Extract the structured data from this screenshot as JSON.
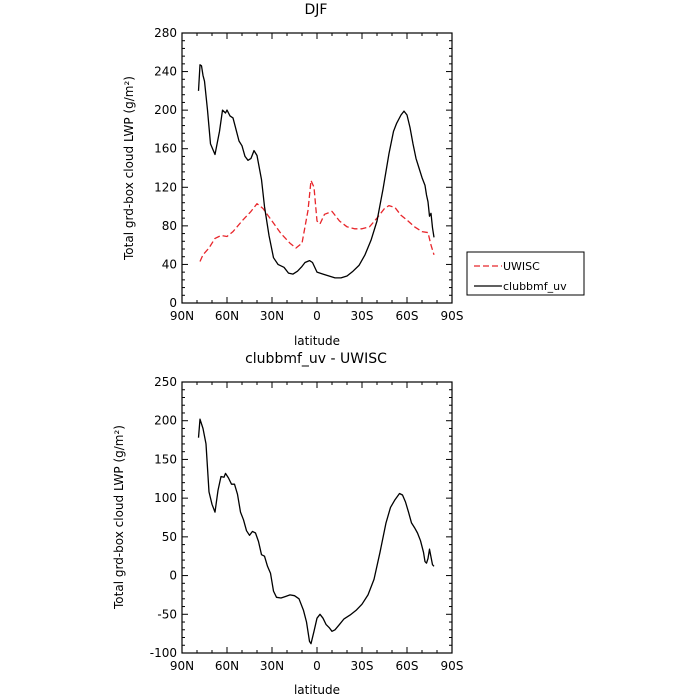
{
  "chart_data": [
    {
      "type": "line",
      "title": "DJF",
      "xlabel": "latitude",
      "ylabel": "Total grd-box cloud LWP (g/m²)",
      "ylim": [
        0,
        280
      ],
      "xlim": [
        90,
        -90
      ],
      "x_ticks": [
        {
          "value": 90,
          "label": "90N"
        },
        {
          "value": 60,
          "label": "60N"
        },
        {
          "value": 30,
          "label": "30N"
        },
        {
          "value": 0,
          "label": "0"
        },
        {
          "value": -30,
          "label": "30S"
        },
        {
          "value": -60,
          "label": "60S"
        },
        {
          "value": -90,
          "label": "90S"
        }
      ],
      "y_ticks": [
        0,
        40,
        80,
        120,
        160,
        200,
        240,
        280
      ],
      "legend_position": "right",
      "series": [
        {
          "name": "UWISC",
          "color": "#e8262b",
          "dash": "dashed",
          "points": [
            [
              78,
              43
            ],
            [
              76,
              50
            ],
            [
              72,
              57
            ],
            [
              68,
              67
            ],
            [
              64,
              70
            ],
            [
              60,
              69
            ],
            [
              56,
              74
            ],
            [
              50,
              85
            ],
            [
              44,
              95
            ],
            [
              40,
              103
            ],
            [
              36,
              98
            ],
            [
              30,
              85
            ],
            [
              24,
              72
            ],
            [
              18,
              62
            ],
            [
              14,
              57
            ],
            [
              10,
              62
            ],
            [
              6,
              96
            ],
            [
              4,
              127
            ],
            [
              2,
              120
            ],
            [
              0,
              85
            ],
            [
              -2,
              82
            ],
            [
              -5,
              92
            ],
            [
              -10,
              95
            ],
            [
              -15,
              85
            ],
            [
              -20,
              79
            ],
            [
              -25,
              77
            ],
            [
              -30,
              77
            ],
            [
              -35,
              79
            ],
            [
              -40,
              88
            ],
            [
              -45,
              98
            ],
            [
              -48,
              101
            ],
            [
              -52,
              99
            ],
            [
              -56,
              91
            ],
            [
              -60,
              86
            ],
            [
              -65,
              79
            ],
            [
              -70,
              74
            ],
            [
              -74,
              73
            ],
            [
              -76,
              60
            ],
            [
              -78,
              50
            ]
          ]
        },
        {
          "name": "clubbmf_uv",
          "color": "#000000",
          "dash": "solid",
          "points": [
            [
              79,
              220
            ],
            [
              78,
              247
            ],
            [
              77,
              246
            ],
            [
              76,
              236
            ],
            [
              75,
              230
            ],
            [
              73,
              200
            ],
            [
              71,
              165
            ],
            [
              68,
              154
            ],
            [
              65,
              178
            ],
            [
              63,
              200
            ],
            [
              61,
              197
            ],
            [
              60,
              200
            ],
            [
              58,
              194
            ],
            [
              56,
              192
            ],
            [
              54,
              180
            ],
            [
              52,
              168
            ],
            [
              50,
              163
            ],
            [
              48,
              152
            ],
            [
              46,
              148
            ],
            [
              44,
              150
            ],
            [
              42,
              158
            ],
            [
              40,
              153
            ],
            [
              37,
              128
            ],
            [
              35,
              100
            ],
            [
              32,
              70
            ],
            [
              29,
              47
            ],
            [
              26,
              40
            ],
            [
              22,
              37
            ],
            [
              19,
              31
            ],
            [
              16,
              30
            ],
            [
              13,
              33
            ],
            [
              10,
              38
            ],
            [
              8,
              42
            ],
            [
              5,
              44
            ],
            [
              3,
              42
            ],
            [
              0,
              32
            ],
            [
              -4,
              30
            ],
            [
              -8,
              28
            ],
            [
              -12,
              26
            ],
            [
              -16,
              26
            ],
            [
              -20,
              28
            ],
            [
              -24,
              33
            ],
            [
              -28,
              39
            ],
            [
              -32,
              50
            ],
            [
              -36,
              65
            ],
            [
              -40,
              85
            ],
            [
              -44,
              118
            ],
            [
              -48,
              155
            ],
            [
              -51,
              178
            ],
            [
              -53,
              186
            ],
            [
              -56,
              195
            ],
            [
              -58,
              199
            ],
            [
              -60,
              195
            ],
            [
              -62,
              182
            ],
            [
              -64,
              165
            ],
            [
              -66,
              150
            ],
            [
              -68,
              140
            ],
            [
              -70,
              130
            ],
            [
              -72,
              122
            ],
            [
              -73,
              112
            ],
            [
              -74,
              105
            ],
            [
              -75,
              90
            ],
            [
              -76,
              93
            ],
            [
              -77,
              78
            ],
            [
              -78,
              68
            ]
          ]
        }
      ]
    },
    {
      "type": "line",
      "title": "clubbmf_uv - UWISC",
      "xlabel": "latitude",
      "ylabel": "Total grd-box cloud LWP (g/m²)",
      "ylim": [
        -100,
        250
      ],
      "xlim": [
        90,
        -90
      ],
      "x_ticks": [
        {
          "value": 90,
          "label": "90N"
        },
        {
          "value": 60,
          "label": "60N"
        },
        {
          "value": 30,
          "label": "30N"
        },
        {
          "value": 0,
          "label": "0"
        },
        {
          "value": -30,
          "label": "30S"
        },
        {
          "value": -60,
          "label": "60S"
        },
        {
          "value": -90,
          "label": "90S"
        }
      ],
      "y_ticks": [
        -100,
        -50,
        0,
        50,
        100,
        150,
        200,
        250
      ],
      "series": [
        {
          "color": "#000000",
          "dash": "solid",
          "points": [
            [
              79,
              178
            ],
            [
              78,
              202
            ],
            [
              76,
              190
            ],
            [
              74,
              170
            ],
            [
              72,
              108
            ],
            [
              70,
              92
            ],
            [
              68,
              82
            ],
            [
              66,
              110
            ],
            [
              64,
              128
            ],
            [
              62,
              127
            ],
            [
              61,
              132
            ],
            [
              59,
              126
            ],
            [
              57,
              118
            ],
            [
              55,
              118
            ],
            [
              53,
              105
            ],
            [
              51,
              82
            ],
            [
              49,
              72
            ],
            [
              47,
              58
            ],
            [
              45,
              52
            ],
            [
              43,
              57
            ],
            [
              41,
              55
            ],
            [
              39,
              44
            ],
            [
              37,
              27
            ],
            [
              35,
              25
            ],
            [
              33,
              12
            ],
            [
              31,
              3
            ],
            [
              29,
              -20
            ],
            [
              27,
              -28
            ],
            [
              24,
              -29
            ],
            [
              21,
              -27
            ],
            [
              18,
              -25
            ],
            [
              15,
              -26
            ],
            [
              12,
              -30
            ],
            [
              9,
              -45
            ],
            [
              7,
              -60
            ],
            [
              5,
              -85
            ],
            [
              4,
              -88
            ],
            [
              2,
              -72
            ],
            [
              0,
              -55
            ],
            [
              -2,
              -50
            ],
            [
              -4,
              -55
            ],
            [
              -6,
              -63
            ],
            [
              -8,
              -67
            ],
            [
              -10,
              -72
            ],
            [
              -12,
              -70
            ],
            [
              -15,
              -63
            ],
            [
              -18,
              -56
            ],
            [
              -22,
              -51
            ],
            [
              -26,
              -45
            ],
            [
              -30,
              -37
            ],
            [
              -34,
              -25
            ],
            [
              -38,
              -5
            ],
            [
              -42,
              30
            ],
            [
              -46,
              68
            ],
            [
              -49,
              88
            ],
            [
              -52,
              98
            ],
            [
              -55,
              106
            ],
            [
              -57,
              104
            ],
            [
              -59,
              95
            ],
            [
              -61,
              82
            ],
            [
              -63,
              68
            ],
            [
              -65,
              62
            ],
            [
              -67,
              55
            ],
            [
              -69,
              45
            ],
            [
              -71,
              30
            ],
            [
              -72,
              18
            ],
            [
              -73,
              16
            ],
            [
              -74,
              22
            ],
            [
              -75,
              34
            ],
            [
              -77,
              14
            ],
            [
              -78,
              12
            ]
          ]
        }
      ]
    }
  ]
}
